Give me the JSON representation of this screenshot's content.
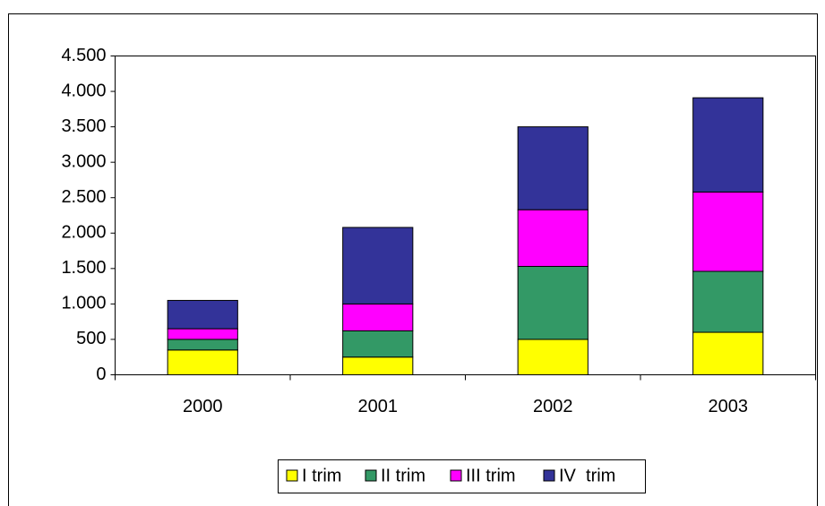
{
  "chart_data": {
    "type": "stacked_bar",
    "categories": [
      "2000",
      "2001",
      "2002",
      "2003"
    ],
    "series": [
      {
        "name": "I trim",
        "color": "#ffff00",
        "values": [
          350,
          250,
          500,
          600
        ]
      },
      {
        "name": "II trim",
        "color": "#339966",
        "values": [
          150,
          370,
          1030,
          860
        ]
      },
      {
        "name": "III trim",
        "color": "#ff00ff",
        "values": [
          150,
          380,
          800,
          1120
        ]
      },
      {
        "name": "IV  trim",
        "color": "#333399",
        "values": [
          400,
          1080,
          1170,
          1330
        ]
      }
    ],
    "ylim": [
      0,
      4500
    ],
    "yticks": [
      0,
      500,
      {
        "value": 1000,
        "label": "1.000"
      },
      {
        "value": 1500,
        "label": "1.500"
      },
      {
        "value": 2000,
        "label": "2.000"
      },
      {
        "value": 2500,
        "label": "2.500"
      },
      {
        "value": 3000,
        "label": "3.000"
      },
      {
        "value": 3500,
        "label": "3.500"
      },
      {
        "value": 4000,
        "label": "4.000"
      },
      {
        "value": 4500,
        "label": "4.500"
      }
    ],
    "grid": false,
    "legend": "bottom"
  }
}
